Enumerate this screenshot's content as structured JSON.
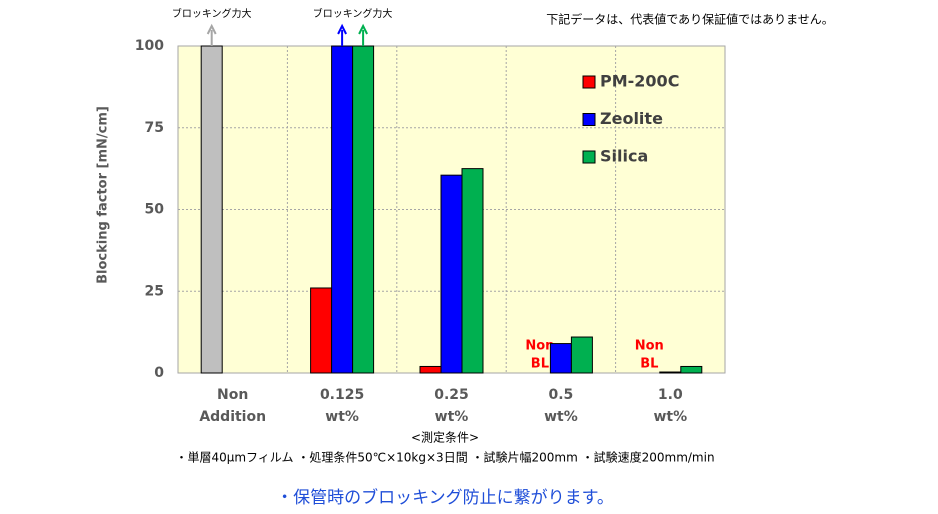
{
  "chart_data": {
    "type": "bar",
    "note": "下記データは、代表値であり保証値ではありません。",
    "y_label": "Blocking factor [mN/cm]",
    "x_label": "<測定条件>",
    "conditions": "・単層40µmフィルム ・処理条件50℃×10kg×3日間 ・試験片幅200mm ・試験速度200mm/min",
    "footer": "・保管時のブロッキング防止に繋がります。",
    "annotations": [
      "ブロッキング力大",
      "ブロッキング力大"
    ],
    "categories": [
      [
        "Non",
        "Addition"
      ],
      [
        "0.125",
        "wt%"
      ],
      [
        "0.25",
        "wt%"
      ],
      [
        "0.5",
        "wt%"
      ],
      [
        "1.0",
        "wt%"
      ]
    ],
    "series": [
      {
        "color": "#bfbfbf",
        "values": [
          100,
          null,
          null,
          null,
          null
        ]
      },
      {
        "name": "PM-200C",
        "color": "#ff0000",
        "values": [
          null,
          26,
          2,
          null,
          null
        ],
        "value_labels": [
          null,
          null,
          null,
          [
            "Non",
            "BL"
          ],
          [
            "Non",
            "BL"
          ]
        ]
      },
      {
        "name": "Zeolite",
        "color": "#0000ff",
        "values": [
          null,
          100,
          60.5,
          9,
          0.3
        ]
      },
      {
        "name": "Silica",
        "color": "#00b050",
        "values": [
          null,
          100,
          62.5,
          11,
          2
        ]
      }
    ],
    "ylim": [
      0,
      100
    ],
    "yticks": [
      0,
      25,
      50,
      75,
      100
    ],
    "grid": true
  }
}
